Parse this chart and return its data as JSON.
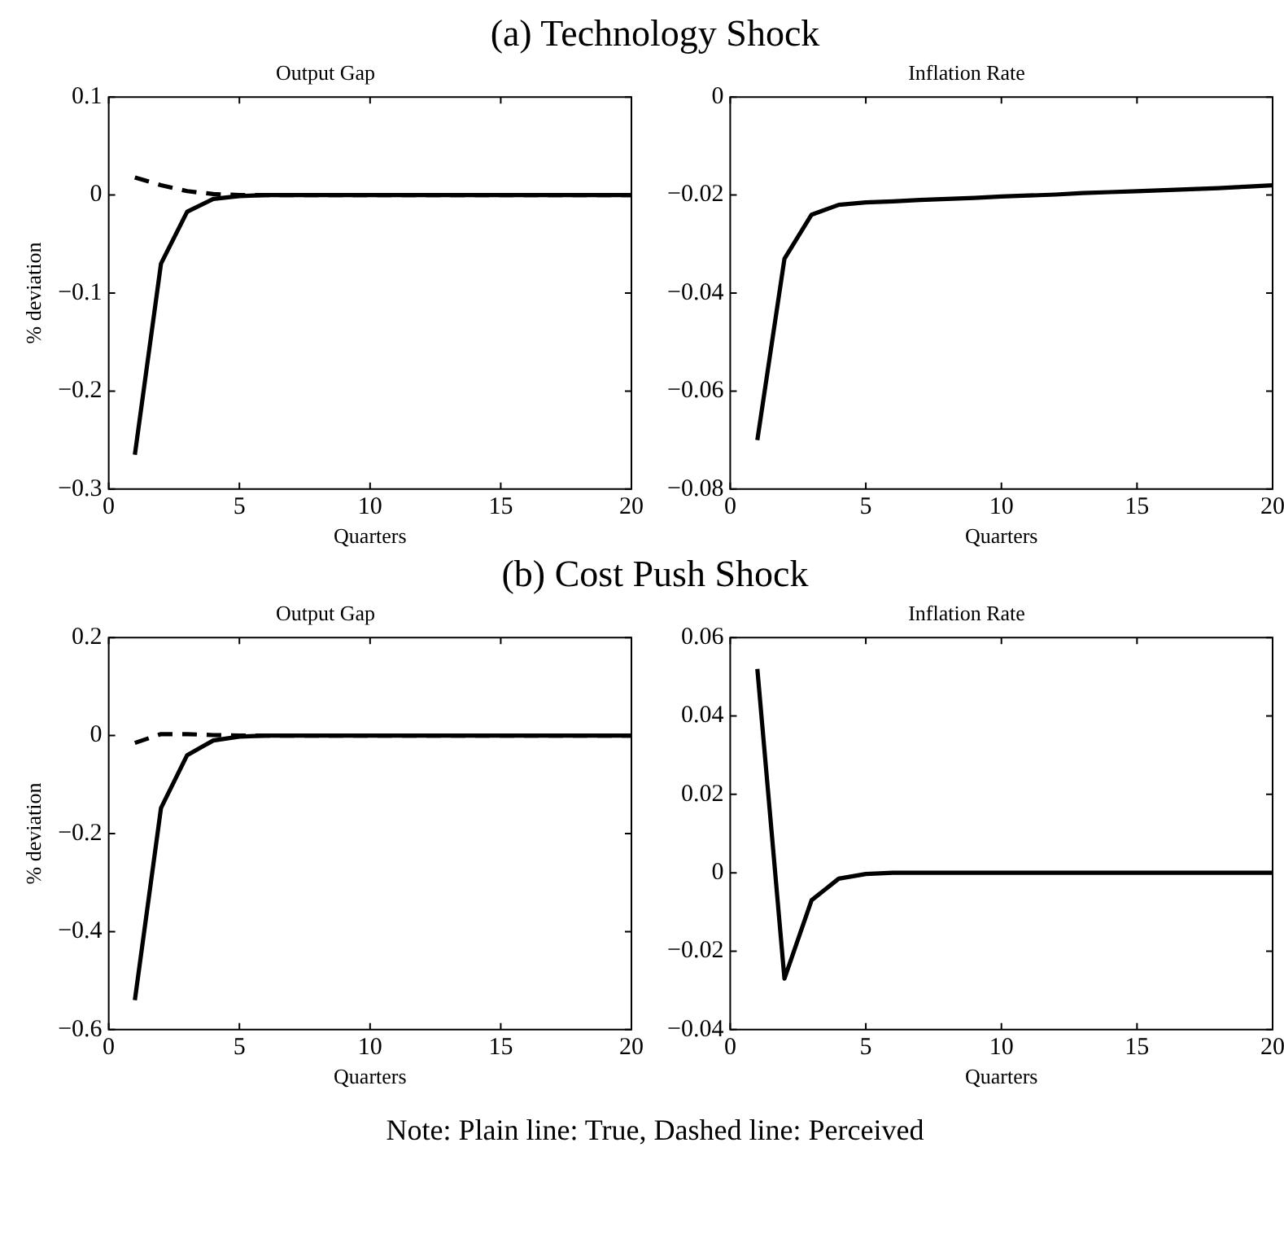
{
  "chart_data": [
    {
      "type": "line",
      "title": "Output Gap",
      "xlabel": "Quarters",
      "ylabel": "% deviation",
      "annotations": [
        "(a) Technology Shock"
      ],
      "x": [
        1,
        2,
        3,
        4,
        5,
        6,
        7,
        8,
        9,
        10,
        11,
        12,
        13,
        14,
        15,
        16,
        17,
        18,
        19,
        20
      ],
      "xlim": [
        0,
        20
      ],
      "xticks": [
        0,
        5,
        10,
        15,
        20
      ],
      "ylim": [
        -0.3,
        0.1
      ],
      "yticks": [
        -0.3,
        -0.2,
        -0.1,
        0,
        0.1
      ],
      "grid": false,
      "legend": false,
      "marker": "none",
      "series": [
        {
          "color": "#000000",
          "line_style": "solid",
          "values": [
            -0.265,
            -0.07,
            -0.017,
            -0.004,
            -0.001,
            0,
            0,
            0,
            0,
            0,
            0,
            0,
            0,
            0,
            0,
            0,
            0,
            0,
            0,
            0
          ]
        },
        {
          "color": "#000000",
          "line_style": "dashed",
          "values": [
            0.018,
            0.01,
            0.004,
            0.001,
            0,
            0,
            0,
            0,
            0,
            0,
            0,
            0,
            0,
            0,
            0,
            0,
            0,
            0,
            0,
            0
          ]
        }
      ]
    },
    {
      "type": "line",
      "title": "Inflation Rate",
      "xlabel": "Quarters",
      "x": [
        1,
        2,
        3,
        4,
        5,
        6,
        7,
        8,
        9,
        10,
        11,
        12,
        13,
        14,
        15,
        16,
        17,
        18,
        19,
        20
      ],
      "xlim": [
        0,
        20
      ],
      "xticks": [
        0,
        5,
        10,
        15,
        20
      ],
      "ylim": [
        -0.08,
        0
      ],
      "yticks": [
        -0.08,
        -0.06,
        -0.04,
        -0.02,
        0
      ],
      "grid": false,
      "legend": false,
      "marker": "none",
      "series": [
        {
          "color": "#000000",
          "line_style": "solid",
          "values": [
            -0.07,
            -0.033,
            -0.024,
            -0.022,
            -0.0215,
            -0.0213,
            -0.021,
            -0.0208,
            -0.0206,
            -0.0203,
            -0.0201,
            -0.0199,
            -0.0196,
            -0.0194,
            -0.0192,
            -0.019,
            -0.0188,
            -0.0186,
            -0.0183,
            -0.018
          ]
        }
      ]
    },
    {
      "type": "line",
      "title": "Output Gap",
      "xlabel": "Quarters",
      "ylabel": "% deviation",
      "annotations": [
        "(b) Cost Push Shock"
      ],
      "x": [
        1,
        2,
        3,
        4,
        5,
        6,
        7,
        8,
        9,
        10,
        11,
        12,
        13,
        14,
        15,
        16,
        17,
        18,
        19,
        20
      ],
      "xlim": [
        0,
        20
      ],
      "xticks": [
        0,
        5,
        10,
        15,
        20
      ],
      "ylim": [
        -0.6,
        0.2
      ],
      "yticks": [
        -0.6,
        -0.4,
        -0.2,
        0,
        0.2
      ],
      "grid": false,
      "legend": false,
      "marker": "none",
      "series": [
        {
          "color": "#000000",
          "line_style": "solid",
          "values": [
            -0.54,
            -0.148,
            -0.04,
            -0.01,
            -0.002,
            0,
            0,
            0,
            0,
            0,
            0,
            0,
            0,
            0,
            0,
            0,
            0,
            0,
            0,
            0
          ]
        },
        {
          "color": "#000000",
          "line_style": "dashed",
          "values": [
            -0.015,
            0.003,
            0.003,
            0.001,
            0,
            0,
            0,
            0,
            0,
            0,
            0,
            0,
            0,
            0,
            0,
            0,
            0,
            0,
            0,
            0
          ]
        }
      ]
    },
    {
      "type": "line",
      "title": "Inflation Rate",
      "xlabel": "Quarters",
      "annotations": [
        "Note: Plain line: True, Dashed line: Perceived"
      ],
      "x": [
        1,
        2,
        3,
        4,
        5,
        6,
        7,
        8,
        9,
        10,
        11,
        12,
        13,
        14,
        15,
        16,
        17,
        18,
        19,
        20
      ],
      "xlim": [
        0,
        20
      ],
      "xticks": [
        0,
        5,
        10,
        15,
        20
      ],
      "ylim": [
        -0.04,
        0.06
      ],
      "yticks": [
        -0.04,
        -0.02,
        0,
        0.02,
        0.04,
        0.06
      ],
      "grid": false,
      "legend": false,
      "marker": "none",
      "series": [
        {
          "color": "#000000",
          "line_style": "solid",
          "values": [
            0.052,
            -0.027,
            -0.007,
            -0.0015,
            -0.0003,
            0,
            0,
            0,
            0,
            0,
            0,
            0,
            0,
            0,
            0,
            0,
            0,
            0,
            0,
            0
          ]
        }
      ]
    }
  ]
}
